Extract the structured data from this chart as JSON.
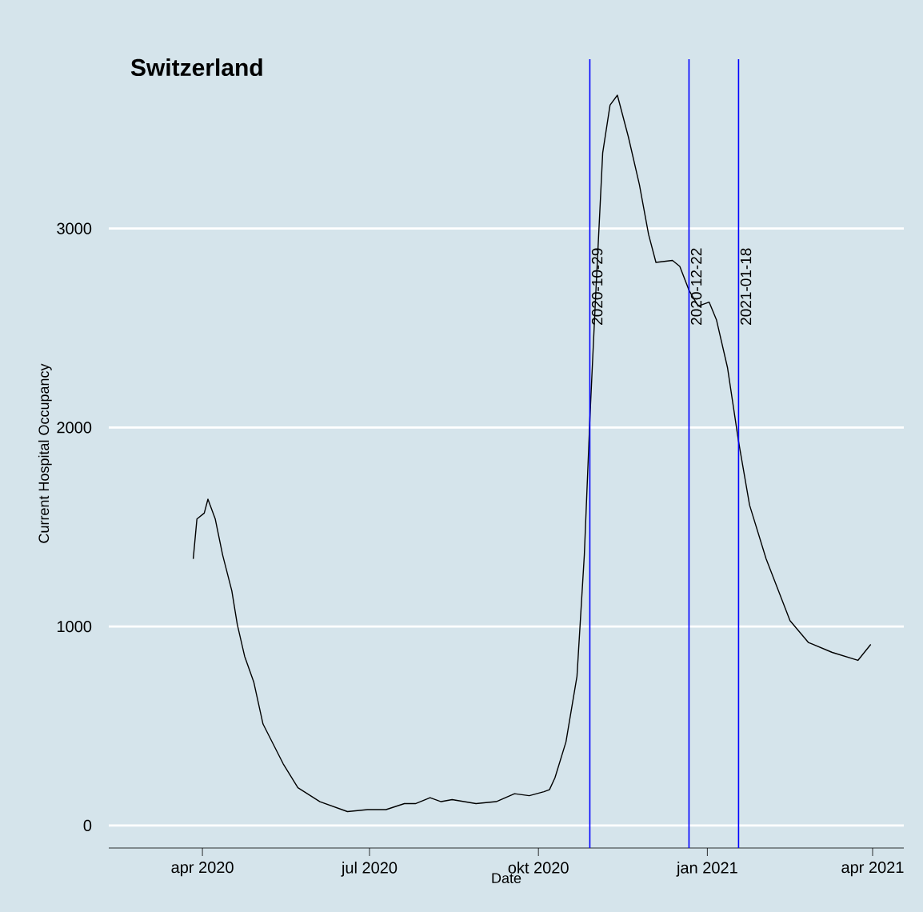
{
  "chart_data": {
    "type": "line",
    "title": "Switzerland",
    "xlabel": "Date",
    "ylabel": "Current Hospital Occupancy",
    "x": [
      "2020-03-27",
      "2020-03-29",
      "2020-04-02",
      "2020-04-04",
      "2020-04-08",
      "2020-04-12",
      "2020-04-17",
      "2020-04-20",
      "2020-04-24",
      "2020-04-29",
      "2020-05-04",
      "2020-05-15",
      "2020-05-23",
      "2020-06-04",
      "2020-06-19",
      "2020-06-30",
      "2020-07-10",
      "2020-07-20",
      "2020-07-26",
      "2020-08-03",
      "2020-08-09",
      "2020-08-15",
      "2020-08-28",
      "2020-09-08",
      "2020-09-18",
      "2020-09-26",
      "2020-10-04",
      "2020-10-07",
      "2020-10-10",
      "2020-10-16",
      "2020-10-22",
      "2020-10-26",
      "2020-10-29",
      "2020-11-01",
      "2020-11-05",
      "2020-11-09",
      "2020-11-13",
      "2020-11-19",
      "2020-11-25",
      "2020-11-30",
      "2020-12-04",
      "2020-12-13",
      "2020-12-17",
      "2020-12-22",
      "2020-12-27",
      "2021-01-02",
      "2021-01-06",
      "2021-01-12",
      "2021-01-18",
      "2021-01-24",
      "2021-02-02",
      "2021-02-15",
      "2021-02-25",
      "2021-03-10",
      "2021-03-24",
      "2021-03-31"
    ],
    "series": [
      {
        "color": "#000000",
        "values": [
          1340,
          1540,
          1570,
          1640,
          1540,
          1360,
          1180,
          1010,
          850,
          720,
          510,
          310,
          190,
          120,
          70,
          80,
          80,
          110,
          110,
          140,
          120,
          130,
          110,
          120,
          160,
          150,
          170,
          180,
          240,
          420,
          750,
          1360,
          2040,
          2630,
          3380,
          3620,
          3670,
          3460,
          3220,
          2970,
          2830,
          2840,
          2810,
          2690,
          2610,
          2630,
          2540,
          2300,
          1930,
          1610,
          1340,
          1030,
          920,
          870,
          830,
          910
        ]
      }
    ],
    "xlim": [
      "2020-02-10",
      "2021-04-18"
    ],
    "xticks": [
      {
        "value": "2020-04-01",
        "label": "apr 2020"
      },
      {
        "value": "2020-07-01",
        "label": "jul 2020"
      },
      {
        "value": "2020-10-01",
        "label": "okt 2020"
      },
      {
        "value": "2021-01-01",
        "label": "jan 2021"
      },
      {
        "value": "2021-04-01",
        "label": "apr 2021"
      }
    ],
    "ylim": [
      -113,
      3851
    ],
    "yticks": [
      0,
      1000,
      2000,
      3000
    ],
    "grid": "y",
    "marker": "none",
    "line_style": "solid",
    "ref_lines": [
      {
        "axis": "x",
        "value": "2020-10-29",
        "label": "2020-10-29",
        "color": "#0000ff"
      },
      {
        "axis": "x",
        "value": "2020-12-22",
        "label": "2020-12-22",
        "color": "#0000ff"
      },
      {
        "axis": "x",
        "value": "2021-01-18",
        "label": "2021-01-18",
        "color": "#0000ff"
      }
    ]
  }
}
